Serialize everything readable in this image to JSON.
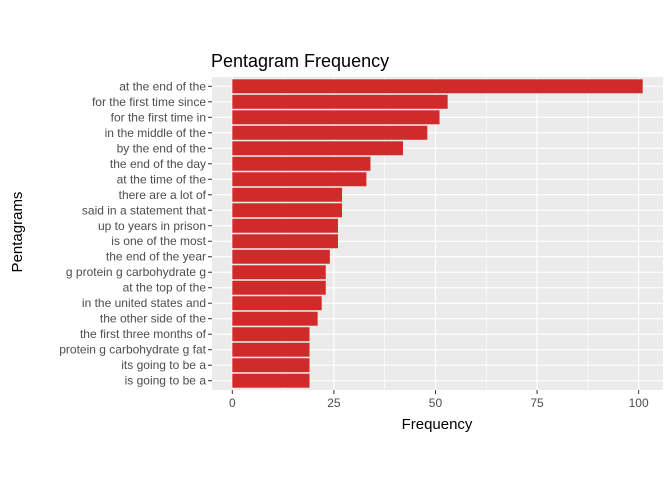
{
  "chart_data": {
    "type": "bar",
    "orientation": "horizontal",
    "title": "Pentagram Frequency",
    "xlabel": "Frequency",
    "ylabel": "Pentagrams",
    "xlim": [
      -5,
      106
    ],
    "xticks": [
      0,
      25,
      50,
      75,
      100
    ],
    "grid": true,
    "bar_color": "#d02a2a",
    "panel_background": "#ebebeb",
    "categories": [
      "at the end of the",
      "for the first time since",
      "for the first time in",
      "in the middle of the",
      "by the end of the",
      "the end of the day",
      "at the time of the",
      "there are a lot of",
      "said in a statement that",
      "up to years in prison",
      "is one of the most",
      "the end of the year",
      "g protein g carbohydrate g",
      "at the top of the",
      "in the united states and",
      "the other side of the",
      "the first three months of",
      "protein g carbohydrate g fat",
      "its going to be a",
      "is going to be a"
    ],
    "values": [
      101,
      53,
      51,
      48,
      42,
      34,
      33,
      27,
      27,
      26,
      26,
      24,
      23,
      23,
      22,
      21,
      19,
      19,
      19,
      19
    ]
  }
}
